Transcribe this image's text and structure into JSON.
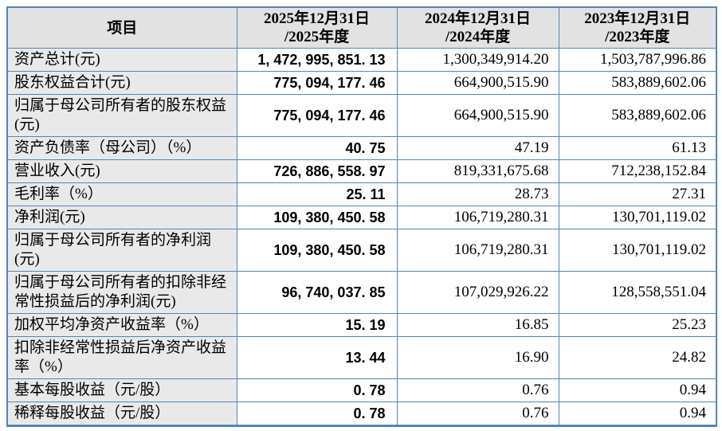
{
  "colors": {
    "border": "#5585b5",
    "header_bg": "#e2e2e2",
    "item_column_bg": "#e9e9e9",
    "value_bg": "#ffffff",
    "text": "#000000"
  },
  "table": {
    "headers": {
      "item": "项目",
      "y2025": "2025年12月31日\n/2025年度",
      "y2024": "2024年12月31日\n/2024年度",
      "y2023": "2023年12月31日\n/2023年度"
    },
    "rows": [
      {
        "label": "资产总计(元)",
        "y2025": "1, 472, 995, 851. 13",
        "y2024": "1,300,349,914.20",
        "y2023": "1,503,787,996.86"
      },
      {
        "label": "股东权益合计(元)",
        "y2025": "775, 094, 177. 46",
        "y2024": "664,900,515.90",
        "y2023": "583,889,602.06"
      },
      {
        "label": "归属于母公司所有者的股东权益(元)",
        "y2025": "775, 094, 177. 46",
        "y2024": "664,900,515.90",
        "y2023": "583,889,602.06"
      },
      {
        "label": "资产负债率（母公司）（%）",
        "y2025": "40. 75",
        "y2024": "47.19",
        "y2023": "61.13"
      },
      {
        "label": "营业收入(元)",
        "y2025": "726, 886, 558. 97",
        "y2024": "819,331,675.68",
        "y2023": "712,238,152.84"
      },
      {
        "label": "毛利率（%）",
        "y2025": "25. 11",
        "y2024": "28.73",
        "y2023": "27.31"
      },
      {
        "label": "净利润(元)",
        "y2025": "109, 380, 450. 58",
        "y2024": "106,719,280.31",
        "y2023": "130,701,119.02"
      },
      {
        "label": "归属于母公司所有者的净利润(元)",
        "y2025": "109, 380, 450. 58",
        "y2024": "106,719,280.31",
        "y2023": "130,701,119.02"
      },
      {
        "label": "归属于母公司所有者的扣除非经常性损益后的净利润(元)",
        "y2025": "96, 740, 037. 85",
        "y2024": "107,029,926.22",
        "y2023": "128,558,551.04"
      },
      {
        "label": "加权平均净资产收益率（%）",
        "y2025": "15. 19",
        "y2024": "16.85",
        "y2023": "25.23"
      },
      {
        "label": "扣除非经常性损益后净资产收益率（%）",
        "y2025": "13. 44",
        "y2024": "16.90",
        "y2023": "24.82"
      },
      {
        "label": "基本每股收益（元/股）",
        "y2025": "0. 78",
        "y2024": "0.76",
        "y2023": "0.94"
      },
      {
        "label": "稀释每股收益（元/股）",
        "y2025": "0. 78",
        "y2024": "0.76",
        "y2023": "0.94"
      }
    ]
  }
}
